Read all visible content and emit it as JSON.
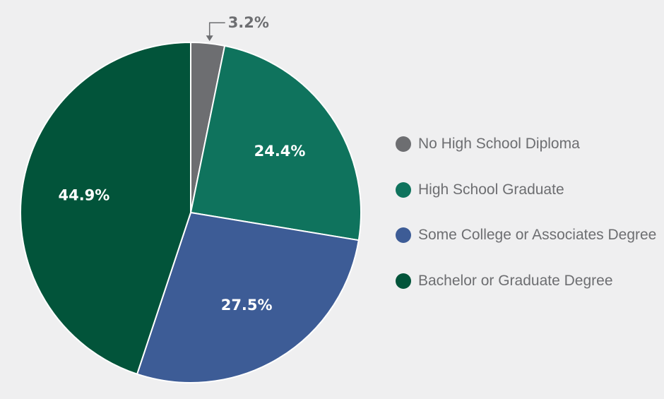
{
  "chart_data": {
    "type": "pie",
    "title": "",
    "legend_position": "right",
    "slices": [
      {
        "label": "No High School Diploma",
        "value": 3.2,
        "display": "3.2%",
        "color": "#6d6e71",
        "label_style": "callout"
      },
      {
        "label": "High School Graduate",
        "value": 24.4,
        "display": "24.4%",
        "color": "#0f735d",
        "label_style": "inside"
      },
      {
        "label": "Some College or Associates Degree",
        "value": 27.5,
        "display": "27.5%",
        "color": "#3d5c96",
        "label_style": "inside"
      },
      {
        "label": "Bachelor or Graduate Degree",
        "value": 44.9,
        "display": "44.9%",
        "color": "#02543a",
        "label_style": "inside"
      }
    ]
  }
}
